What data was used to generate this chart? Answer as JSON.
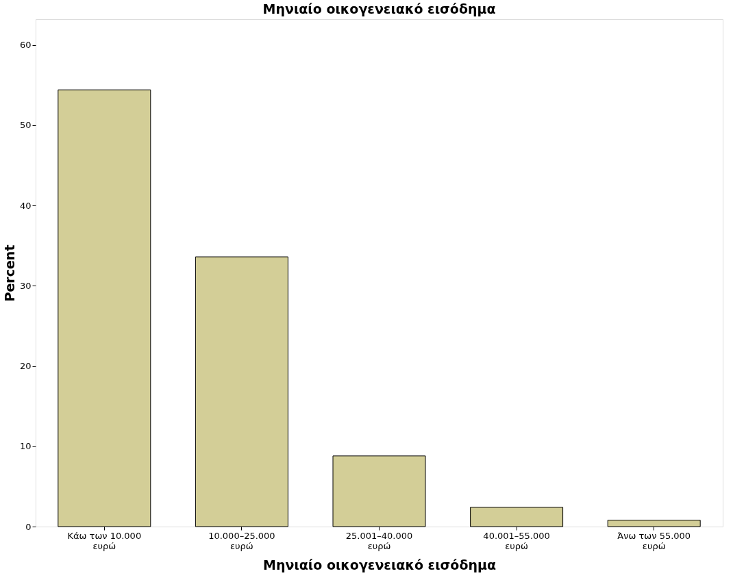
{
  "chart_data": {
    "type": "bar",
    "title": "Μηνιαίο οικογενειακό εισόδημα",
    "xlabel": "Μηνιαίο οικογενειακό εισόδημα",
    "ylabel": "Percent",
    "categories": [
      "Κάω των 10.000 ευρώ",
      "10.000–25.000 ευρώ",
      "25.001–40.000 ευρώ",
      "40.001–55.000 ευρώ",
      "Άνω των 55.000 ευρώ"
    ],
    "values": [
      54.4,
      33.6,
      8.8,
      2.4,
      0.8
    ],
    "color": "#d3ce97",
    "ylim": [
      0,
      63.2
    ],
    "yticks": [
      0,
      10,
      20,
      30,
      40,
      50,
      60
    ],
    "grid": false
  }
}
